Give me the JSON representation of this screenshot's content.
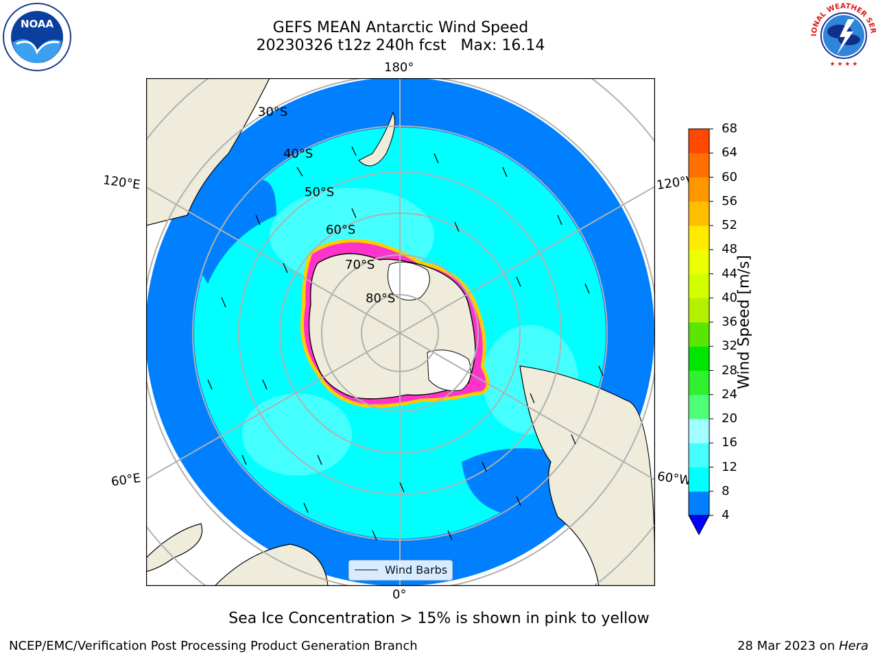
{
  "title": {
    "line1": "GEFS MEAN Antarctic Wind Speed",
    "line2": "20230326 t12z 240h fcst   Max: 16.14"
  },
  "map": {
    "projection": "south-polar-stereographic",
    "lon_labels": {
      "top": "180°",
      "bottom": "0°",
      "left_upper": "120°E",
      "left_lower": "60°E",
      "right_upper": "120°W",
      "right_lower": "60°W"
    },
    "lat_labels": [
      "30°S",
      "40°S",
      "50°S",
      "60°S",
      "70°S",
      "80°S"
    ],
    "legend_label": "Wind Barbs",
    "ice_color_pink": "#ff33cc",
    "ice_color_yellow": "#ffcc00",
    "land_color": "#efecdc",
    "ocean_base_color": "#0080ff"
  },
  "colorbar": {
    "label": "Wind Speed [m/s]",
    "ticks": [
      "4",
      "8",
      "12",
      "16",
      "20",
      "24",
      "28",
      "32",
      "36",
      "40",
      "44",
      "48",
      "52",
      "56",
      "60",
      "64",
      "68"
    ],
    "colors": [
      "#0080ff",
      "#00ffff",
      "#45ffff",
      "#a0ffff",
      "#50ff78",
      "#30f030",
      "#00e600",
      "#5ae600",
      "#b4f000",
      "#d2ff00",
      "#ecff00",
      "#ffea00",
      "#ffbf00",
      "#ff9800",
      "#ff7000",
      "#ff4800",
      "#ff0000"
    ],
    "under_color": "#0000ff"
  },
  "footer": {
    "caption": "Sea Ice Concentration > 15% is shown in pink to yellow",
    "credit": "NCEP/EMC/Verification Post Processing Product Generation Branch",
    "date": "28 Mar 2023 on ",
    "machine": "Hera"
  },
  "logos": {
    "left": {
      "icon": "noaa-logo",
      "text": "NOAA"
    },
    "right": {
      "icon": "nws-logo",
      "text": "NATIONAL WEATHER SERVICE"
    }
  }
}
